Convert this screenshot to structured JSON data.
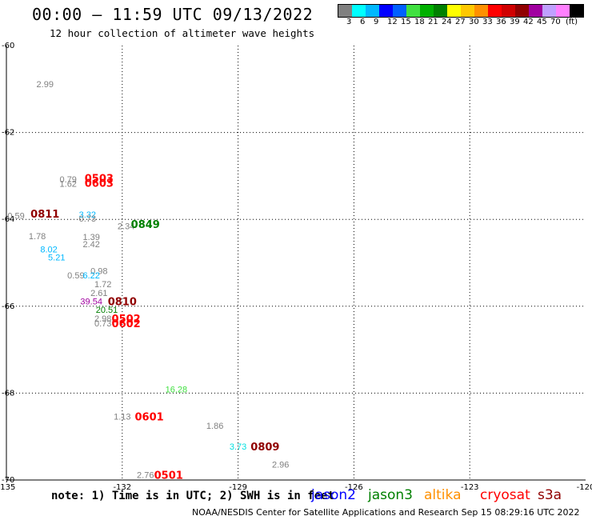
{
  "header": {
    "title": "00:00 – 11:59 UTC 09/13/2022",
    "subtitle": "12 hour collection of altimeter wave heights"
  },
  "legend": {
    "colors": [
      "#808080",
      "#00ffff",
      "#00b8ff",
      "#0000ff",
      "#0060ff",
      "#40e040",
      "#00b000",
      "#008000",
      "#ffff00",
      "#ffc800",
      "#ff9000",
      "#ff0000",
      "#d00000",
      "#900000",
      "#a000a0",
      "#c0a0ff",
      "#ff80ff",
      "#000000"
    ],
    "labels": [
      "3",
      "6",
      "9",
      "12",
      "15",
      "18",
      "21",
      "24",
      "27",
      "30",
      "33",
      "36",
      "39",
      "42",
      "45",
      "70",
      "(ft)"
    ]
  },
  "axes": {
    "lon_ticks": [
      "-135",
      "-132",
      "-129",
      "-126",
      "-123",
      "-120"
    ],
    "lat_ticks": [
      "-60",
      "-62",
      "-64",
      "-66",
      "-68",
      "-70"
    ]
  },
  "map_data": {
    "lon_range": [
      -135,
      -120
    ],
    "lat_range": [
      -60,
      -70
    ],
    "values": [
      {
        "text": "2.99",
        "lon": -134.0,
        "lat": -60.88,
        "color": "#808080"
      },
      {
        "text": "0.79",
        "lon": -133.4,
        "lat": -63.08,
        "color": "#808080"
      },
      {
        "text": "1.62",
        "lon": -133.4,
        "lat": -63.18,
        "color": "#808080"
      },
      {
        "text": "0.59",
        "lon": -134.75,
        "lat": -63.91,
        "color": "#808080"
      },
      {
        "text": "3.32",
        "lon": -132.9,
        "lat": -63.89,
        "color": "#00b8ff"
      },
      {
        "text": "0.73",
        "lon": -132.9,
        "lat": -63.98,
        "color": "#808080"
      },
      {
        "text": "2.34",
        "lon": -131.9,
        "lat": -64.15,
        "color": "#808080"
      },
      {
        "text": "1.78",
        "lon": -134.2,
        "lat": -64.38,
        "color": "#808080"
      },
      {
        "text": "1.39",
        "lon": -132.8,
        "lat": -64.4,
        "color": "#808080"
      },
      {
        "text": "2.42",
        "lon": -132.8,
        "lat": -64.57,
        "color": "#808080"
      },
      {
        "text": "8.02",
        "lon": -133.9,
        "lat": -64.69,
        "color": "#00b8ff"
      },
      {
        "text": "5.21",
        "lon": -133.7,
        "lat": -64.87,
        "color": "#00b8ff"
      },
      {
        "text": "0.98",
        "lon": -132.6,
        "lat": -65.18,
        "color": "#808080"
      },
      {
        "text": "0.59",
        "lon": -133.2,
        "lat": -65.29,
        "color": "#808080"
      },
      {
        "text": "6.22",
        "lon": -132.8,
        "lat": -65.29,
        "color": "#00b8ff"
      },
      {
        "text": "1.72",
        "lon": -132.5,
        "lat": -65.49,
        "color": "#808080"
      },
      {
        "text": "2.61",
        "lon": -132.6,
        "lat": -65.69,
        "color": "#808080"
      },
      {
        "text": "39.54",
        "lon": -132.8,
        "lat": -65.88,
        "color": "#a000a0"
      },
      {
        "text": "20.51",
        "lon": -132.4,
        "lat": -66.08,
        "color": "#008000"
      },
      {
        "text": "2.98",
        "lon": -132.5,
        "lat": -66.28,
        "color": "#808080"
      },
      {
        "text": "0.73",
        "lon": -132.5,
        "lat": -66.39,
        "color": "#808080"
      },
      {
        "text": "16.28",
        "lon": -130.6,
        "lat": -67.91,
        "color": "#40e040"
      },
      {
        "text": "1.13",
        "lon": -132.0,
        "lat": -68.54,
        "color": "#808080"
      },
      {
        "text": "1.86",
        "lon": -129.6,
        "lat": -68.75,
        "color": "#808080"
      },
      {
        "text": "3.73",
        "lon": -129.0,
        "lat": -69.23,
        "color": "#00e0e0"
      },
      {
        "text": "2.96",
        "lon": -127.9,
        "lat": -69.64,
        "color": "#808080"
      },
      {
        "text": "2.76",
        "lon": -131.4,
        "lat": -69.88,
        "color": "#808080"
      }
    ],
    "passes": [
      {
        "text": "0503",
        "lon": -132.6,
        "lat": -63.05,
        "color": "#ff0000"
      },
      {
        "text": "0603",
        "lon": -132.6,
        "lat": -63.16,
        "color": "#ff0000"
      },
      {
        "text": "0811",
        "lon": -134.0,
        "lat": -63.87,
        "color": "#900000"
      },
      {
        "text": "0849",
        "lon": -131.4,
        "lat": -64.11,
        "color": "#008000"
      },
      {
        "text": "0810",
        "lon": -132.0,
        "lat": -65.88,
        "color": "#900000"
      },
      {
        "text": "0502",
        "lon": -131.9,
        "lat": -66.28,
        "color": "#ff0000"
      },
      {
        "text": "0602",
        "lon": -131.9,
        "lat": -66.39,
        "color": "#ff0000"
      },
      {
        "text": "0601",
        "lon": -131.3,
        "lat": -68.54,
        "color": "#ff0000"
      },
      {
        "text": "0809",
        "lon": -128.3,
        "lat": -69.23,
        "color": "#900000"
      },
      {
        "text": "0501",
        "lon": -130.8,
        "lat": -69.88,
        "color": "#ff0000"
      }
    ]
  },
  "footer": {
    "note": "note: 1) Time is in UTC; 2) SWH is in feet",
    "satellites": [
      {
        "name": "jason2",
        "color": "#0000ff"
      },
      {
        "name": "jason3",
        "color": "#008000"
      },
      {
        "name": "altika",
        "color": "#ff9000"
      },
      {
        "name": "cryosat",
        "color": "#ff0000"
      },
      {
        "name": "s3a",
        "color": "#900000"
      }
    ],
    "credit": "NOAA/NESDIS Center for Satellite Applications and Research    Sep 15 08:29:16 UTC 2022"
  }
}
